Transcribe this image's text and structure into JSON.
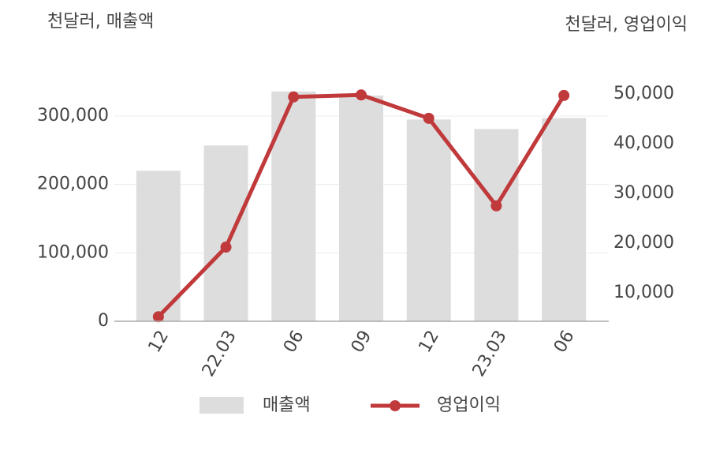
{
  "chart_data": {
    "type": "bar_line",
    "y_unit_label": "천달러, 매출액",
    "y2_unit_label": "천달러, 영업이익",
    "categories": [
      "12",
      "22.03",
      "06",
      "09",
      "12",
      "23.03",
      "06"
    ],
    "series": [
      {
        "name": "매출액",
        "type": "bar",
        "color": "#dddddd",
        "values": [
          220000,
          257000,
          336000,
          330000,
          295000,
          281000,
          297000
        ]
      },
      {
        "name": "영업이익",
        "type": "line",
        "axis": "y2",
        "color": "#c0393b",
        "values": [
          5200,
          19200,
          49400,
          49800,
          45100,
          27500,
          49700
        ]
      }
    ],
    "ylim": [
      0,
      350000
    ],
    "yticks": [
      0,
      {
        "value": 100000,
        "label": "100,000"
      },
      {
        "value": 200000,
        "label": "200,000"
      },
      {
        "value": 300000,
        "label": "300,000"
      }
    ],
    "y2lim": [
      4286,
      52430
    ],
    "y2ticks": [
      {
        "value": 10000,
        "label": "10,000"
      },
      {
        "value": 20000,
        "label": "20,000"
      },
      {
        "value": 30000,
        "label": "30,000"
      },
      {
        "value": 40000,
        "label": "40,000"
      },
      {
        "value": 50000,
        "label": "50,000"
      }
    ],
    "grid": true
  }
}
